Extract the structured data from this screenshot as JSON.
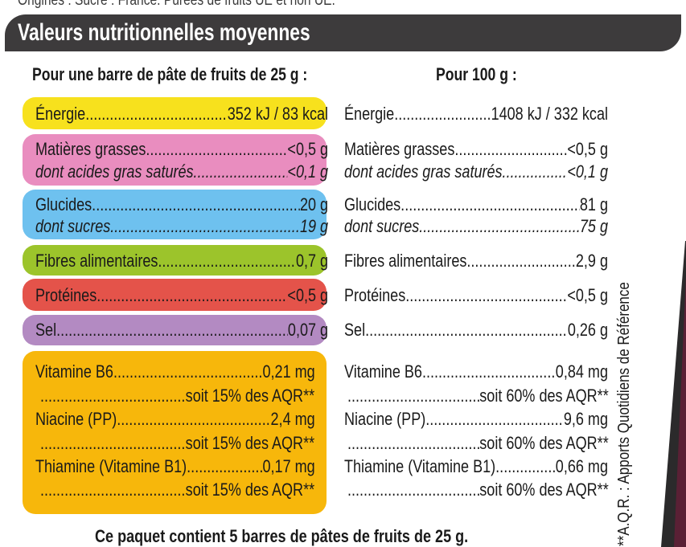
{
  "top_cut_text": "Origines : Sucre : France. Purées de fruits UE et non UE.",
  "banner_title": "Valeurs nutritionnelles moyennes",
  "col_left_header": "Pour une barre de pâte de fruits de 25 g :",
  "col_right_header": "Pour 100 g :",
  "colors": {
    "energie": "#f7e11d",
    "graisses": "#e98dbf",
    "glucides": "#6ec1ef",
    "fibres": "#9cc42b",
    "proteines": "#e4534a",
    "sel": "#b38ac2",
    "vitamines": "#f7b70b",
    "banner": "#3d3b3c"
  },
  "left": {
    "energie": {
      "label": "Énergie",
      "value": "352 kJ / 83 kcal"
    },
    "graisses": {
      "label": "Matières grasses",
      "value": "<0,5 g"
    },
    "satures": {
      "label": "dont acides gras saturés",
      "value": "<0,1 g"
    },
    "glucides": {
      "label": "Glucides",
      "value": "20 g"
    },
    "sucres": {
      "label": "dont sucres",
      "value": "19 g"
    },
    "fibres": {
      "label": "Fibres alimentaires",
      "value": "0,7 g"
    },
    "proteines": {
      "label": "Protéines",
      "value": "<0,5 g"
    },
    "sel": {
      "label": "Sel",
      "value": "0,07 g"
    },
    "b6": {
      "label": "Vitamine B6",
      "value": "0,21 mg"
    },
    "b6_aqr": {
      "label": "",
      "value": "soit 15% des AQR**"
    },
    "niacine": {
      "label": "Niacine (PP)",
      "value": "2,4 mg"
    },
    "niacine_aqr": {
      "label": "",
      "value": "soit 15% des AQR**"
    },
    "thiamine": {
      "label": "Thiamine (Vitamine B1)",
      "value": "0,17 mg"
    },
    "thiamine_aqr": {
      "label": "",
      "value": "soit 15% des AQR**"
    }
  },
  "right": {
    "energie": {
      "label": "Énergie",
      "value": "1408 kJ / 332 kcal"
    },
    "graisses": {
      "label": "Matières grasses",
      "value": "<0,5 g"
    },
    "satures": {
      "label": "dont acides gras saturés",
      "value": "<0,1 g"
    },
    "glucides": {
      "label": "Glucides",
      "value": "81 g"
    },
    "sucres": {
      "label": "dont sucres",
      "value": "75 g"
    },
    "fibres": {
      "label": "Fibres alimentaires",
      "value": "2,9 g"
    },
    "proteines": {
      "label": "Protéines",
      "value": "<0,5 g"
    },
    "sel": {
      "label": "Sel",
      "value": "0,26 g"
    },
    "b6": {
      "label": "Vitamine B6",
      "value": "0,84 mg"
    },
    "b6_aqr": {
      "label": "",
      "value": "soit 60% des AQR**"
    },
    "niacine": {
      "label": "Niacine (PP)",
      "value": "9,6 mg"
    },
    "niacine_aqr": {
      "label": "",
      "value": "soit 60% des AQR**"
    },
    "thiamine": {
      "label": "Thiamine (Vitamine B1)",
      "value": "0,66 mg"
    },
    "thiamine_aqr": {
      "label": "",
      "value": "soit 60% des AQR**"
    }
  },
  "side_note": "**A.Q.R. : Apports Quotidiens de Référence",
  "footer": "Ce paquet contient 5 barres de pâtes de fruits de 25 g."
}
